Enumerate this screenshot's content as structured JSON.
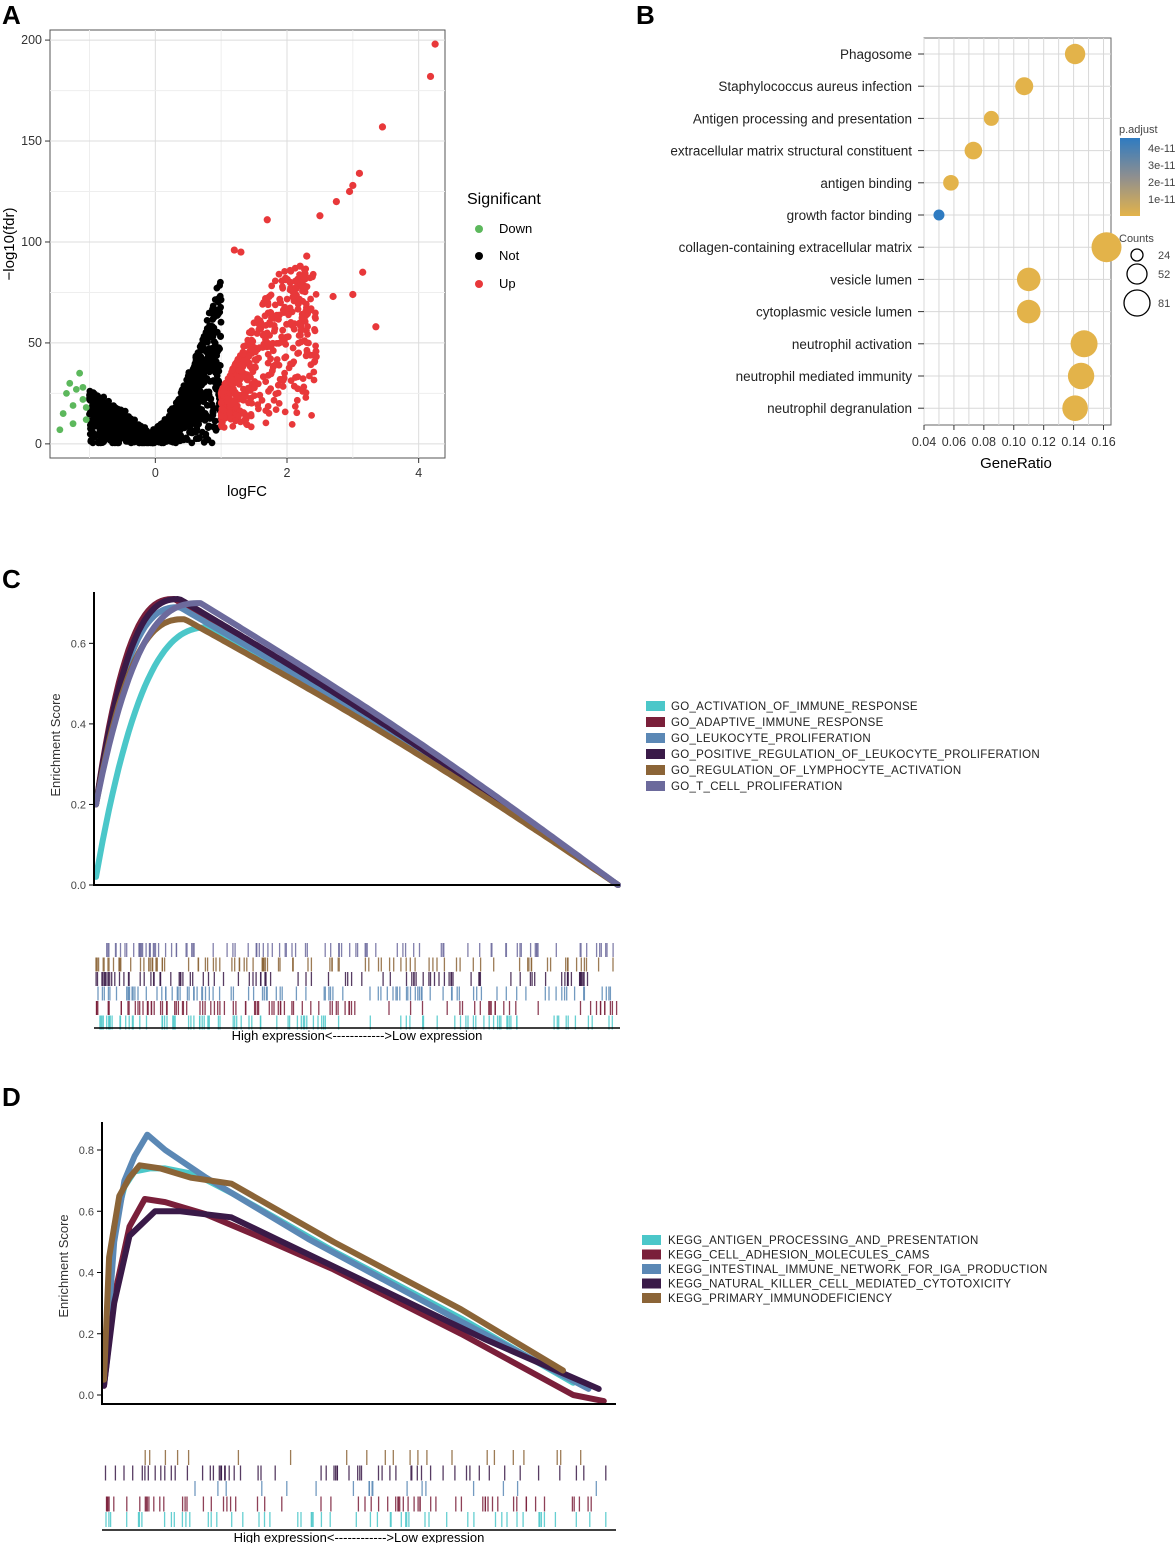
{
  "chart_data": [
    {
      "panel": "A",
      "type": "scatter",
      "xlabel": "logFC",
      "ylabel": "−log10(fdr)",
      "xlim": [
        -1.6,
        4.4
      ],
      "ylim": [
        -7,
        205
      ],
      "xticks": [
        "0",
        "2",
        "4"
      ],
      "yticks": [
        "0",
        "50",
        "100",
        "150",
        "200"
      ],
      "legend_title": "Significant",
      "legend_position": "right",
      "series": [
        {
          "name": "Down",
          "color": "#5cb85c",
          "points": [
            [
              -1.45,
              7
            ],
            [
              -1.4,
              15
            ],
            [
              -1.35,
              25
            ],
            [
              -1.3,
              30
            ],
            [
              -1.25,
              19
            ],
            [
              -1.2,
              27
            ],
            [
              -1.15,
              35
            ],
            [
              -1.1,
              22
            ],
            [
              -1.05,
              12
            ],
            [
              -1.25,
              10
            ],
            [
              -1.1,
              28
            ],
            [
              -1.05,
              18
            ]
          ]
        },
        {
          "name": "Not",
          "color": "#000000",
          "x_range": [
            -1.0,
            1.0
          ],
          "max_y": 90
        },
        {
          "name": "Up",
          "color": "#e8383a",
          "points": [
            [
              4.25,
              198
            ],
            [
              4.18,
              182
            ],
            [
              3.45,
              157
            ],
            [
              3.1,
              134
            ],
            [
              3.0,
              128
            ],
            [
              2.95,
              125
            ],
            [
              2.75,
              120
            ],
            [
              2.5,
              113
            ],
            [
              1.7,
              111
            ],
            [
              3.15,
              85
            ],
            [
              3.0,
              74
            ],
            [
              2.7,
              73
            ],
            [
              3.35,
              58
            ],
            [
              2.3,
              93
            ],
            [
              2.2,
              88
            ],
            [
              2.05,
              80
            ],
            [
              1.9,
              70
            ],
            [
              1.75,
              65
            ],
            [
              1.6,
              60
            ],
            [
              1.45,
              55
            ],
            [
              1.3,
              95
            ],
            [
              1.2,
              96
            ]
          ]
        }
      ]
    },
    {
      "panel": "B",
      "type": "scatter",
      "xlabel": "GeneRatio",
      "xlim": [
        0.04,
        0.165
      ],
      "xticks": [
        "0.04",
        "0.06",
        "0.08",
        "0.10",
        "0.12",
        "0.14",
        "0.16"
      ],
      "categories": [
        "Phagosome",
        "Staphylococcus aureus infection",
        "Antigen processing and presentation",
        "extracellular matrix structural constituent",
        "antigen binding",
        "growth factor binding",
        "collagen-containing extracellular matrix",
        "vesicle lumen",
        "cytoplasmic vesicle lumen",
        "neutrophil activation",
        "neutrophil mediated immunity",
        "neutrophil degranulation"
      ],
      "gene_ratio": [
        0.141,
        0.107,
        0.085,
        0.073,
        0.058,
        0.05,
        0.162,
        0.11,
        0.11,
        0.147,
        0.145,
        0.141
      ],
      "counts": [
        52,
        45,
        36,
        44,
        38,
        24,
        81,
        62,
        62,
        72,
        70,
        68
      ],
      "p_adjust": [
        1e-11,
        1e-11,
        1e-11,
        1e-11,
        1e-11,
        4.5e-11,
        1e-11,
        1e-11,
        1e-11,
        1e-11,
        1e-11,
        1e-11
      ],
      "color_legend": {
        "title": "p.adjust",
        "labels": [
          "4e-11",
          "3e-11",
          "2e-11",
          "1e-11"
        ],
        "low_color": "#e3b34a",
        "high_color": "#2f7bc1"
      },
      "size_legend": {
        "title": "Counts",
        "labels": [
          "24",
          "52",
          "81"
        ]
      }
    },
    {
      "panel": "C",
      "type": "line",
      "ylabel": "Enrichment Score",
      "ylim": [
        0,
        0.72
      ],
      "yticks": [
        "0.0",
        "0.2",
        "0.4",
        "0.6"
      ],
      "rank_axis_label": "High expression<------------>Low expression",
      "legend_position": "right",
      "series": [
        {
          "name": "GO_ACTIVATION_OF_IMMUNE_RESPONSE",
          "color": "#4bc7c9",
          "peak": 0.64,
          "peak_at": 0.22,
          "start": 0.02
        },
        {
          "name": "GO_ADAPTIVE_IMMUNE_RESPONSE",
          "color": "#7a1f3a",
          "peak": 0.71,
          "peak_at": 0.15,
          "start": 0.2
        },
        {
          "name": "GO_LEUKOCYTE_PROLIFERATION",
          "color": "#5b88b5",
          "peak": 0.69,
          "peak_at": 0.16,
          "start": 0.2
        },
        {
          "name": "GO_POSITIVE_REGULATION_OF_LEUKOCYTE_PROLIFERATION",
          "color": "#3a1a48",
          "peak": 0.71,
          "peak_at": 0.16,
          "start": 0.2
        },
        {
          "name": "GO_REGULATION_OF_LYMPHOCYTE_ACTIVATION",
          "color": "#8b6437",
          "peak": 0.66,
          "peak_at": 0.17,
          "start": 0.2
        },
        {
          "name": "GO_T_CELL_PROLIFERATION",
          "color": "#6c6a9c",
          "peak": 0.7,
          "peak_at": 0.2,
          "start": 0.2
        }
      ]
    },
    {
      "panel": "D",
      "type": "line",
      "ylabel": "Enrichment Score",
      "ylim": [
        -0.02,
        0.87
      ],
      "yticks": [
        "0.0",
        "0.2",
        "0.4",
        "0.6",
        "0.8"
      ],
      "rank_axis_label": "High expression<------------>Low expression",
      "legend_position": "right",
      "series": [
        {
          "name": "KEGG_ANTIGEN_PROCESSING_AND_PRESENTATION",
          "color": "#4bc7c9",
          "points": [
            [
              0,
              0.05
            ],
            [
              0.02,
              0.55
            ],
            [
              0.04,
              0.68
            ],
            [
              0.06,
              0.73
            ],
            [
              0.09,
              0.74
            ],
            [
              0.12,
              0.74
            ],
            [
              0.18,
              0.72
            ],
            [
              0.25,
              0.66
            ],
            [
              0.45,
              0.47
            ],
            [
              0.7,
              0.25
            ],
            [
              0.92,
              0.04
            ]
          ]
        },
        {
          "name": "KEGG_CELL_ADHESION_MOLECULES_CAMS",
          "color": "#7a1f3a",
          "points": [
            [
              0,
              0.03
            ],
            [
              0.02,
              0.32
            ],
            [
              0.05,
              0.55
            ],
            [
              0.08,
              0.64
            ],
            [
              0.12,
              0.63
            ],
            [
              0.2,
              0.59
            ],
            [
              0.3,
              0.52
            ],
            [
              0.45,
              0.41
            ],
            [
              0.7,
              0.2
            ],
            [
              0.92,
              0.0
            ],
            [
              0.98,
              -0.02
            ]
          ]
        },
        {
          "name": "KEGG_INTESTINAL_IMMUNE_NETWORK_FOR_IGA_PRODUCTION",
          "color": "#5b88b5",
          "points": [
            [
              0,
              0.05
            ],
            [
              0.02,
              0.5
            ],
            [
              0.04,
              0.7
            ],
            [
              0.06,
              0.78
            ],
            [
              0.085,
              0.85
            ],
            [
              0.12,
              0.8
            ],
            [
              0.2,
              0.71
            ],
            [
              0.4,
              0.51
            ],
            [
              0.7,
              0.24
            ],
            [
              0.95,
              0.02
            ]
          ]
        },
        {
          "name": "KEGG_NATURAL_KILLER_CELL_MEDIATED_CYTOTOXICITY",
          "color": "#3a1a48",
          "points": [
            [
              0,
              0.03
            ],
            [
              0.02,
              0.3
            ],
            [
              0.05,
              0.52
            ],
            [
              0.1,
              0.6
            ],
            [
              0.15,
              0.6
            ],
            [
              0.25,
              0.58
            ],
            [
              0.35,
              0.5
            ],
            [
              0.5,
              0.38
            ],
            [
              0.75,
              0.18
            ],
            [
              0.97,
              0.02
            ]
          ]
        },
        {
          "name": "KEGG_PRIMARY_IMMUNODEFICIENCY",
          "color": "#8b6437",
          "points": [
            [
              0,
              0.05
            ],
            [
              0.01,
              0.45
            ],
            [
              0.03,
              0.65
            ],
            [
              0.05,
              0.71
            ],
            [
              0.07,
              0.75
            ],
            [
              0.11,
              0.74
            ],
            [
              0.17,
              0.71
            ],
            [
              0.25,
              0.69
            ],
            [
              0.45,
              0.5
            ],
            [
              0.7,
              0.28
            ],
            [
              0.9,
              0.08
            ]
          ]
        }
      ]
    }
  ],
  "panels": {
    "a": "A",
    "b": "B",
    "c": "C",
    "d": "D"
  }
}
